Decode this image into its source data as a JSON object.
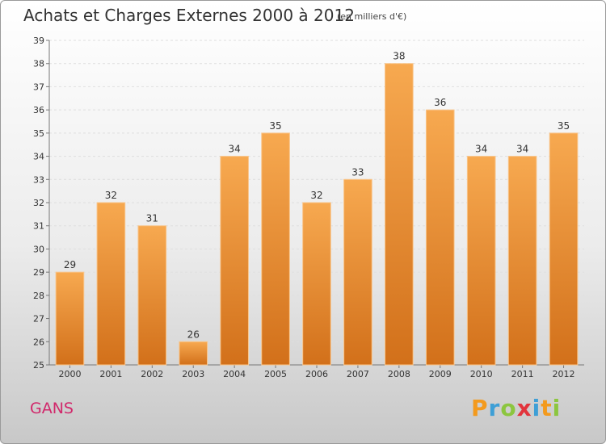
{
  "header": {
    "title": "Achats et Charges Externes 2000 à 2012",
    "subtitle": "(en milliers d'€)"
  },
  "footer": {
    "place": "GANS",
    "logo": "Proxiti"
  },
  "colors": {
    "bar_top": "#f7a950",
    "bar_bottom": "#d2701a",
    "place_text": "#d1286b"
  },
  "chart_data": {
    "type": "bar",
    "categories": [
      "2000",
      "2001",
      "2002",
      "2003",
      "2004",
      "2005",
      "2006",
      "2007",
      "2008",
      "2009",
      "2010",
      "2011",
      "2012"
    ],
    "values": [
      29,
      32,
      31,
      26,
      34,
      35,
      32,
      33,
      38,
      36,
      34,
      34,
      35
    ],
    "title": "Achats et Charges Externes 2000 à 2012",
    "subtitle": "(en milliers d'€)",
    "ylim": [
      25,
      39
    ],
    "yticks": [
      25,
      26,
      27,
      28,
      29,
      30,
      31,
      32,
      33,
      34,
      35,
      36,
      37,
      38,
      39
    ],
    "grid": true,
    "data_labels": true
  }
}
